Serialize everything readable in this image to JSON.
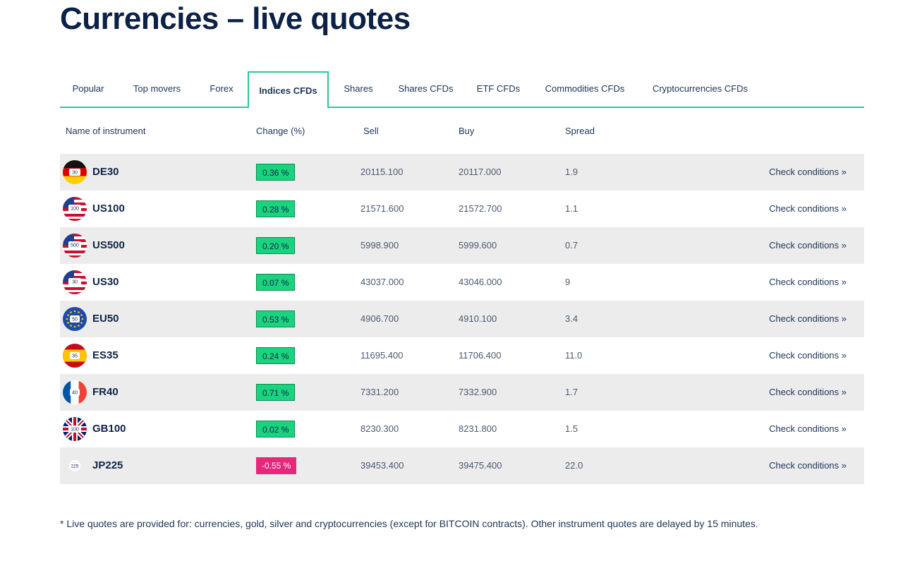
{
  "page": {
    "title": "Currencies – live quotes"
  },
  "tabs": [
    {
      "label": "Popular"
    },
    {
      "label": "Top movers"
    },
    {
      "label": "Forex"
    },
    {
      "label": "Indices CFDs",
      "active": true
    },
    {
      "label": "Shares"
    },
    {
      "label": "Shares CFDs"
    },
    {
      "label": "ETF CFDs"
    },
    {
      "label": "Commodities CFDs"
    },
    {
      "label": "Cryptocurrencies CFDs"
    }
  ],
  "table": {
    "headers": {
      "name": "Name of instrument",
      "change": "Change (%)",
      "sell": "Sell",
      "buy": "Buy",
      "spread": "Spread"
    },
    "check_label": "Check conditions »",
    "colors": {
      "up": "#19d37e",
      "down": "#e5287a",
      "accent": "#2ec98b"
    },
    "rows": [
      {
        "symbol": "DE30",
        "flag": "germany-flag-icon",
        "flag_label": "30",
        "change": "0.36 %",
        "direction": "up",
        "sell": "20115.100",
        "buy": "20117.000",
        "spread": "1.9"
      },
      {
        "symbol": "US100",
        "flag": "usa-flag-icon",
        "flag_label": "100",
        "change": "0.28 %",
        "direction": "up",
        "sell": "21571.600",
        "buy": "21572.700",
        "spread": "1.1"
      },
      {
        "symbol": "US500",
        "flag": "usa-flag-icon",
        "flag_label": "500",
        "change": "0.20 %",
        "direction": "up",
        "sell": "5998.900",
        "buy": "5999.600",
        "spread": "0.7"
      },
      {
        "symbol": "US30",
        "flag": "usa-flag-icon",
        "flag_label": "30",
        "change": "0.07 %",
        "direction": "up",
        "sell": "43037.000",
        "buy": "43046.000",
        "spread": "9"
      },
      {
        "symbol": "EU50",
        "flag": "eu-flag-icon",
        "flag_label": "50",
        "change": "0.53 %",
        "direction": "up",
        "sell": "4906.700",
        "buy": "4910.100",
        "spread": "3.4"
      },
      {
        "symbol": "ES35",
        "flag": "spain-flag-icon",
        "flag_label": "35",
        "change": "0.24 %",
        "direction": "up",
        "sell": "11695.400",
        "buy": "11706.400",
        "spread": "11.0"
      },
      {
        "symbol": "FR40",
        "flag": "france-flag-icon",
        "flag_label": "40",
        "change": "0.71 %",
        "direction": "up",
        "sell": "7331.200",
        "buy": "7332.900",
        "spread": "1.7"
      },
      {
        "symbol": "GB100",
        "flag": "uk-flag-icon",
        "flag_label": "100",
        "change": "0.02 %",
        "direction": "up",
        "sell": "8230.300",
        "buy": "8231.800",
        "spread": "1.5"
      },
      {
        "symbol": "JP225",
        "flag": "japan-flag-icon",
        "flag_label": "225",
        "change": "-0.55 %",
        "direction": "down",
        "sell": "39453.400",
        "buy": "39475.400",
        "spread": "22.0"
      }
    ]
  },
  "footnote": "* Live quotes are provided for: currencies, gold, silver and cryptocurrencies (except for BITCOIN contracts). Other instrument quotes are delayed by 15 minutes."
}
